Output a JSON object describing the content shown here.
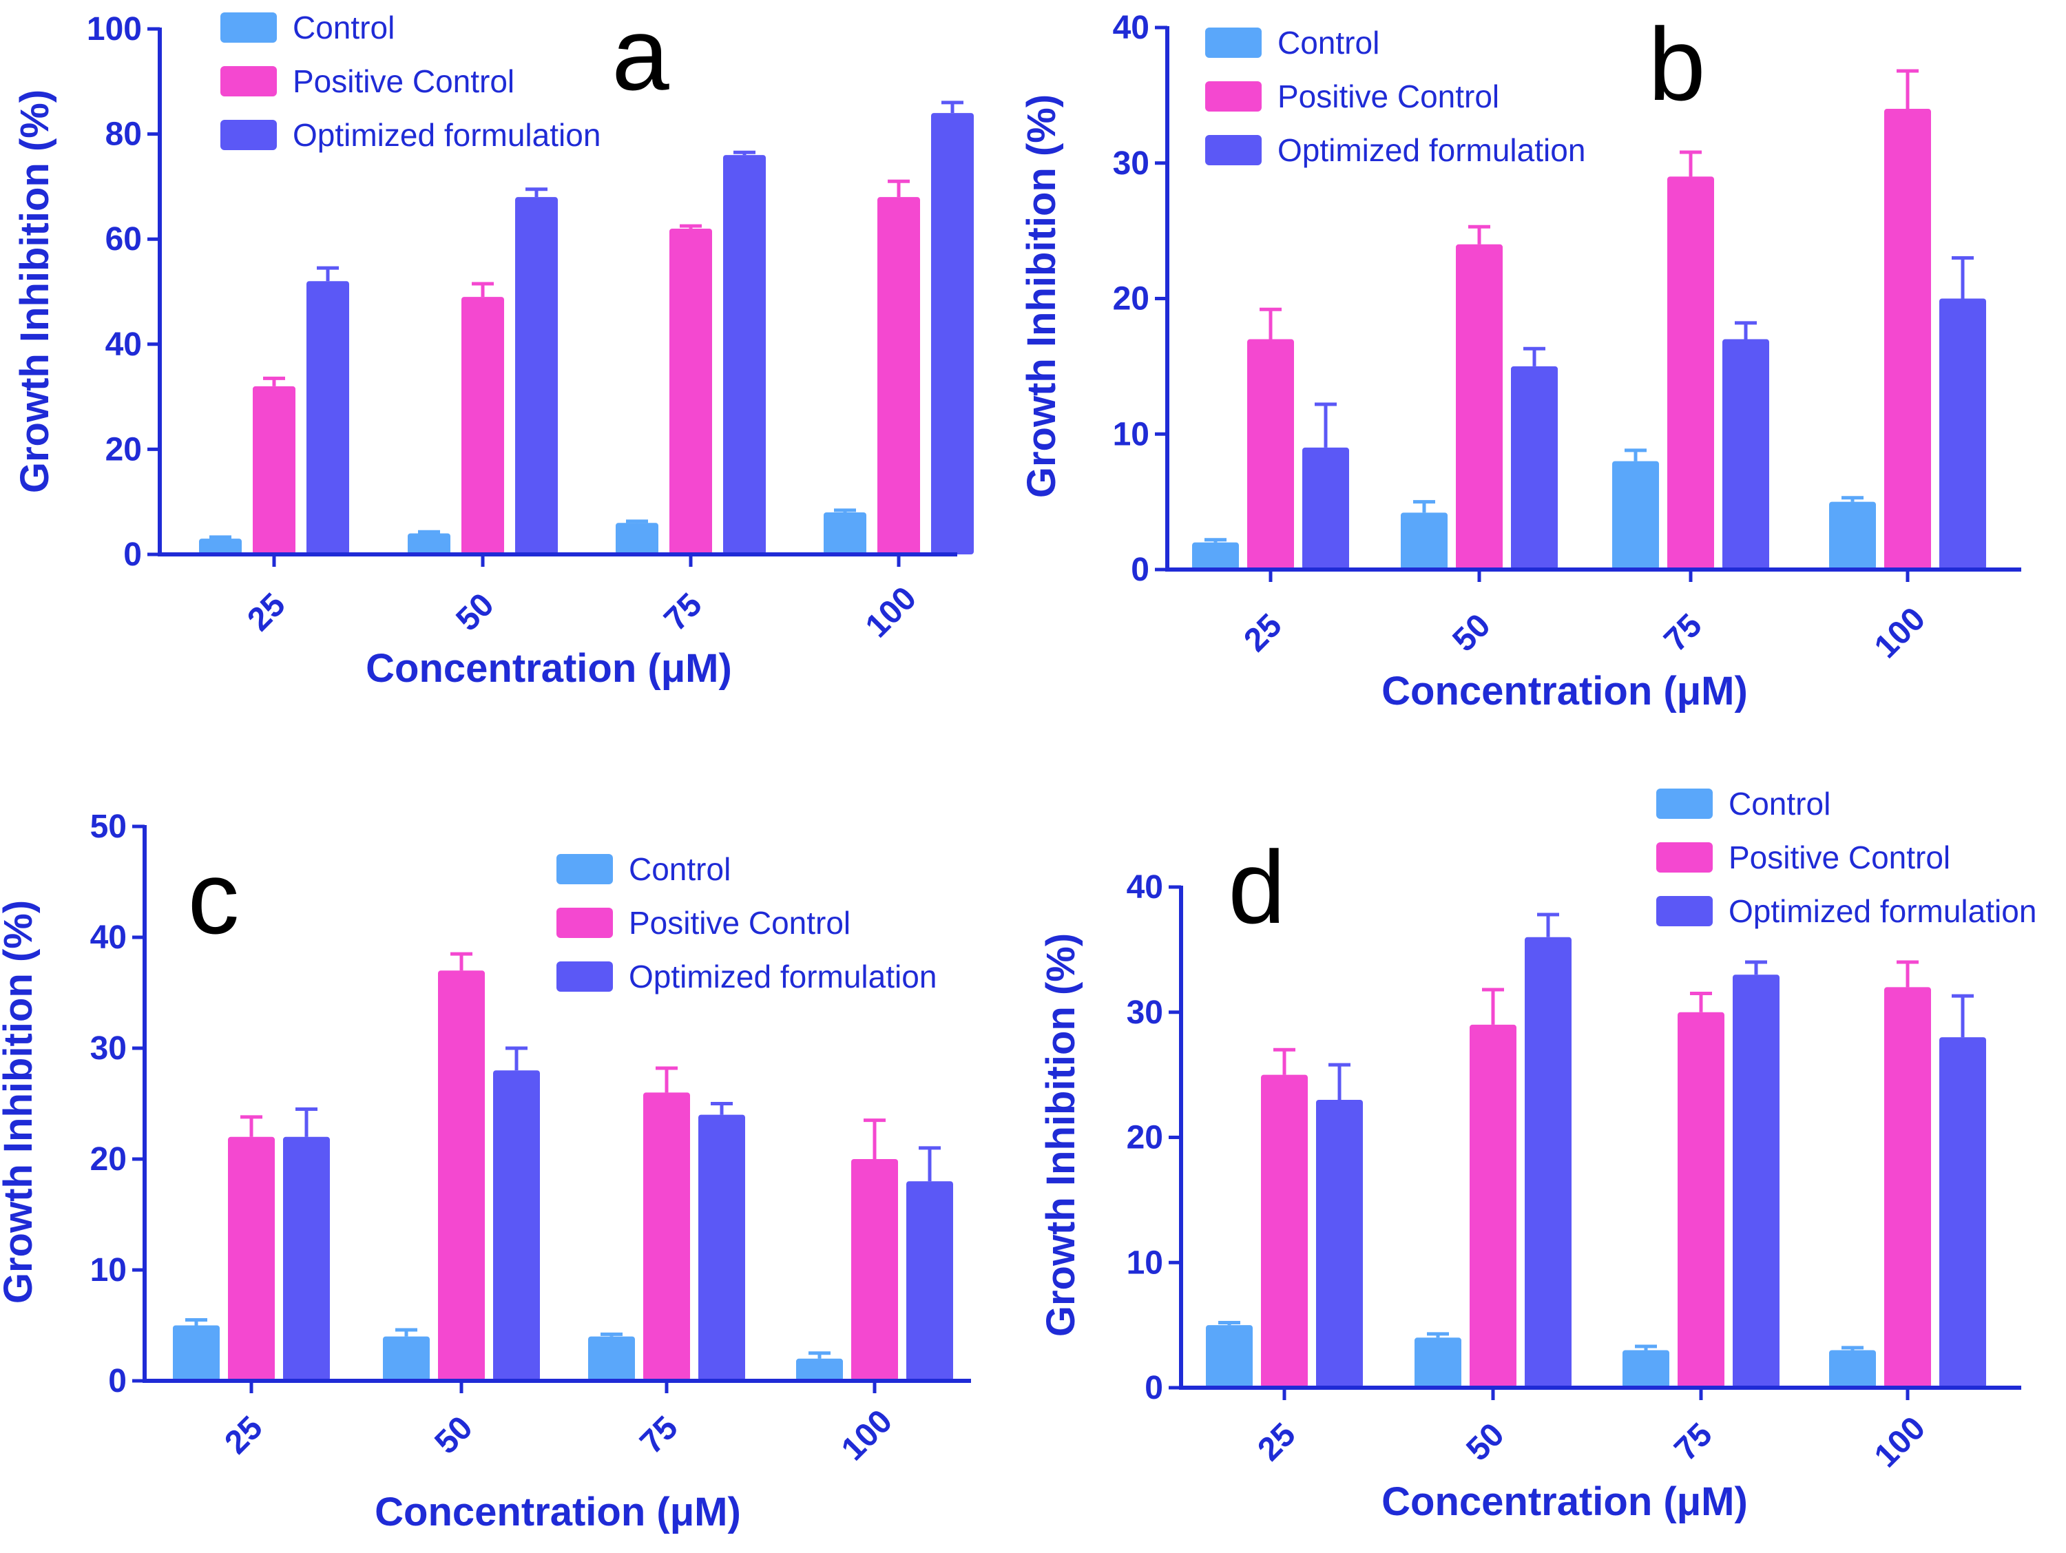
{
  "colors": {
    "axis": "#1f2bd6",
    "control": "#5aa7fa",
    "positive_control": "#f448d0",
    "optimized": "#5b58f6",
    "panel_letter": "#000000"
  },
  "chart_data": [
    {
      "panel": "a",
      "type": "bar",
      "xlabel": "Concentration (μM)",
      "ylabel": "Growth Inhibition (%)",
      "ylim": [
        0,
        100
      ],
      "yticks": [
        "0",
        "20",
        "40",
        "60",
        "80",
        "100"
      ],
      "categories": [
        "25",
        "50",
        "75",
        "100"
      ],
      "legend": [
        "Control",
        "Positive Control",
        "Optimized formulation"
      ],
      "legend_position": "top-left",
      "series": [
        {
          "name": "Control",
          "values": [
            3,
            4,
            6,
            8
          ],
          "errors": [
            0.3,
            0.3,
            0.3,
            0.4
          ]
        },
        {
          "name": "Positive Control",
          "values": [
            32,
            49,
            62,
            68
          ],
          "errors": [
            1.5,
            2.5,
            0.5,
            3
          ]
        },
        {
          "name": "Optimized formulation",
          "values": [
            52,
            68,
            76,
            84
          ],
          "errors": [
            2.5,
            1.5,
            0.5,
            2
          ]
        }
      ]
    },
    {
      "panel": "b",
      "type": "bar",
      "xlabel": "Concentration (μM)",
      "ylabel": "Growth Inhibition (%)",
      "ylim": [
        0,
        40
      ],
      "yticks": [
        "0",
        "10",
        "20",
        "30",
        "40"
      ],
      "categories": [
        "25",
        "50",
        "75",
        "100"
      ],
      "legend": [
        "Control",
        "Positive Control",
        "Optimized formulation"
      ],
      "legend_position": "top-left",
      "series": [
        {
          "name": "Control",
          "values": [
            2,
            4.2,
            8,
            5
          ],
          "errors": [
            0.2,
            0.8,
            0.8,
            0.3
          ]
        },
        {
          "name": "Positive Control",
          "values": [
            17,
            24,
            29,
            34
          ],
          "errors": [
            2.2,
            1.3,
            1.8,
            2.8
          ]
        },
        {
          "name": "Optimized formulation",
          "values": [
            9,
            15,
            17,
            20
          ],
          "errors": [
            3.2,
            1.3,
            1.2,
            3
          ]
        }
      ]
    },
    {
      "panel": "c",
      "type": "bar",
      "xlabel": "Concentration (μM)",
      "ylabel": "Growth Inhibition (%)",
      "ylim": [
        0,
        50
      ],
      "yticks": [
        "0",
        "10",
        "20",
        "30",
        "40",
        "50"
      ],
      "categories": [
        "25",
        "50",
        "75",
        "100"
      ],
      "legend": [
        "Control",
        "Positive Control",
        "Optimized formulation"
      ],
      "legend_position": "top-right",
      "series": [
        {
          "name": "Control",
          "values": [
            5,
            4,
            4,
            2
          ],
          "errors": [
            0.5,
            0.6,
            0.2,
            0.5
          ]
        },
        {
          "name": "Positive Control",
          "values": [
            22,
            37,
            26,
            20
          ],
          "errors": [
            1.8,
            1.5,
            2.2,
            3.5
          ]
        },
        {
          "name": "Optimized formulation",
          "values": [
            22,
            28,
            24,
            18
          ],
          "errors": [
            2.5,
            2,
            1,
            3
          ]
        }
      ]
    },
    {
      "panel": "d",
      "type": "bar",
      "xlabel": "Concentration (μM)",
      "ylabel": "Growth Inhibition (%)",
      "ylim": [
        0,
        40
      ],
      "yticks": [
        "0",
        "10",
        "20",
        "30",
        "40"
      ],
      "categories": [
        "25",
        "50",
        "75",
        "100"
      ],
      "legend": [
        "Control",
        "Positive Control",
        "Optimized formulation"
      ],
      "legend_position": "top-right",
      "series": [
        {
          "name": "Control",
          "values": [
            5,
            4,
            3,
            3
          ],
          "errors": [
            0.2,
            0.3,
            0.3,
            0.2
          ]
        },
        {
          "name": "Positive Control",
          "values": [
            25,
            29,
            30,
            32
          ],
          "errors": [
            2,
            2.8,
            1.5,
            2
          ]
        },
        {
          "name": "Optimized formulation",
          "values": [
            23,
            36,
            33,
            28
          ],
          "errors": [
            2.8,
            1.8,
            1,
            3.3
          ]
        }
      ]
    }
  ]
}
